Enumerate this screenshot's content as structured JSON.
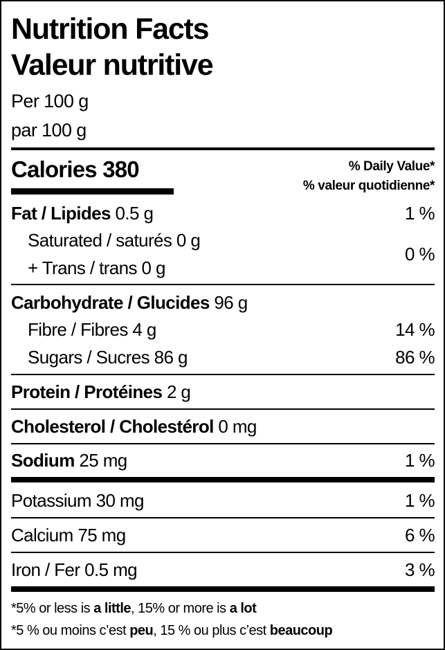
{
  "header": {
    "title_en": "Nutrition Facts",
    "title_fr": "Valeur nutritive",
    "serving_en": "Per 100 g",
    "serving_fr": "par 100 g"
  },
  "calories": {
    "label": "Calories",
    "value": "380"
  },
  "daily_value": {
    "en": "% Daily Value*",
    "fr": "% valeur quotidienne*"
  },
  "nutrients": {
    "fat": {
      "label": "Fat / Lipides",
      "amount": "0.5 g",
      "dv": "1 %"
    },
    "saturated": {
      "label": "Saturated / saturés",
      "amount": "0 g"
    },
    "trans": {
      "label": "+ Trans / trans",
      "amount": "0 g",
      "dv": "0 %"
    },
    "carb": {
      "label": "Carbohydrate / Glucides",
      "amount": "96 g"
    },
    "fibre": {
      "label": "Fibre / Fibres",
      "amount": "4 g",
      "dv": "14 %"
    },
    "sugars": {
      "label": "Sugars / Sucres",
      "amount": "86 g",
      "dv": "86 %"
    },
    "protein": {
      "label": "Protein / Protéines",
      "amount": "2 g"
    },
    "cholesterol": {
      "label": "Cholesterol / Cholestérol",
      "amount": "0 mg"
    },
    "sodium": {
      "label": "Sodium",
      "amount": "25 mg",
      "dv": "1 %"
    },
    "potassium": {
      "label": "Potassium",
      "amount": "30 mg",
      "dv": "1 %"
    },
    "calcium": {
      "label": "Calcium",
      "amount": "75 mg",
      "dv": "6 %"
    },
    "iron": {
      "label": "Iron / Fer",
      "amount": "0.5 mg",
      "dv": "3 %"
    }
  },
  "footnote": {
    "en_1": "*5% or less is ",
    "en_b1": "a little",
    "en_2": ", 15% or more is ",
    "en_b2": "a lot",
    "fr_1": "*5 % ou moins c’est ",
    "fr_b1": "peu",
    "fr_2": ", 15 % ou plus c’est ",
    "fr_b2": "beaucoup"
  }
}
